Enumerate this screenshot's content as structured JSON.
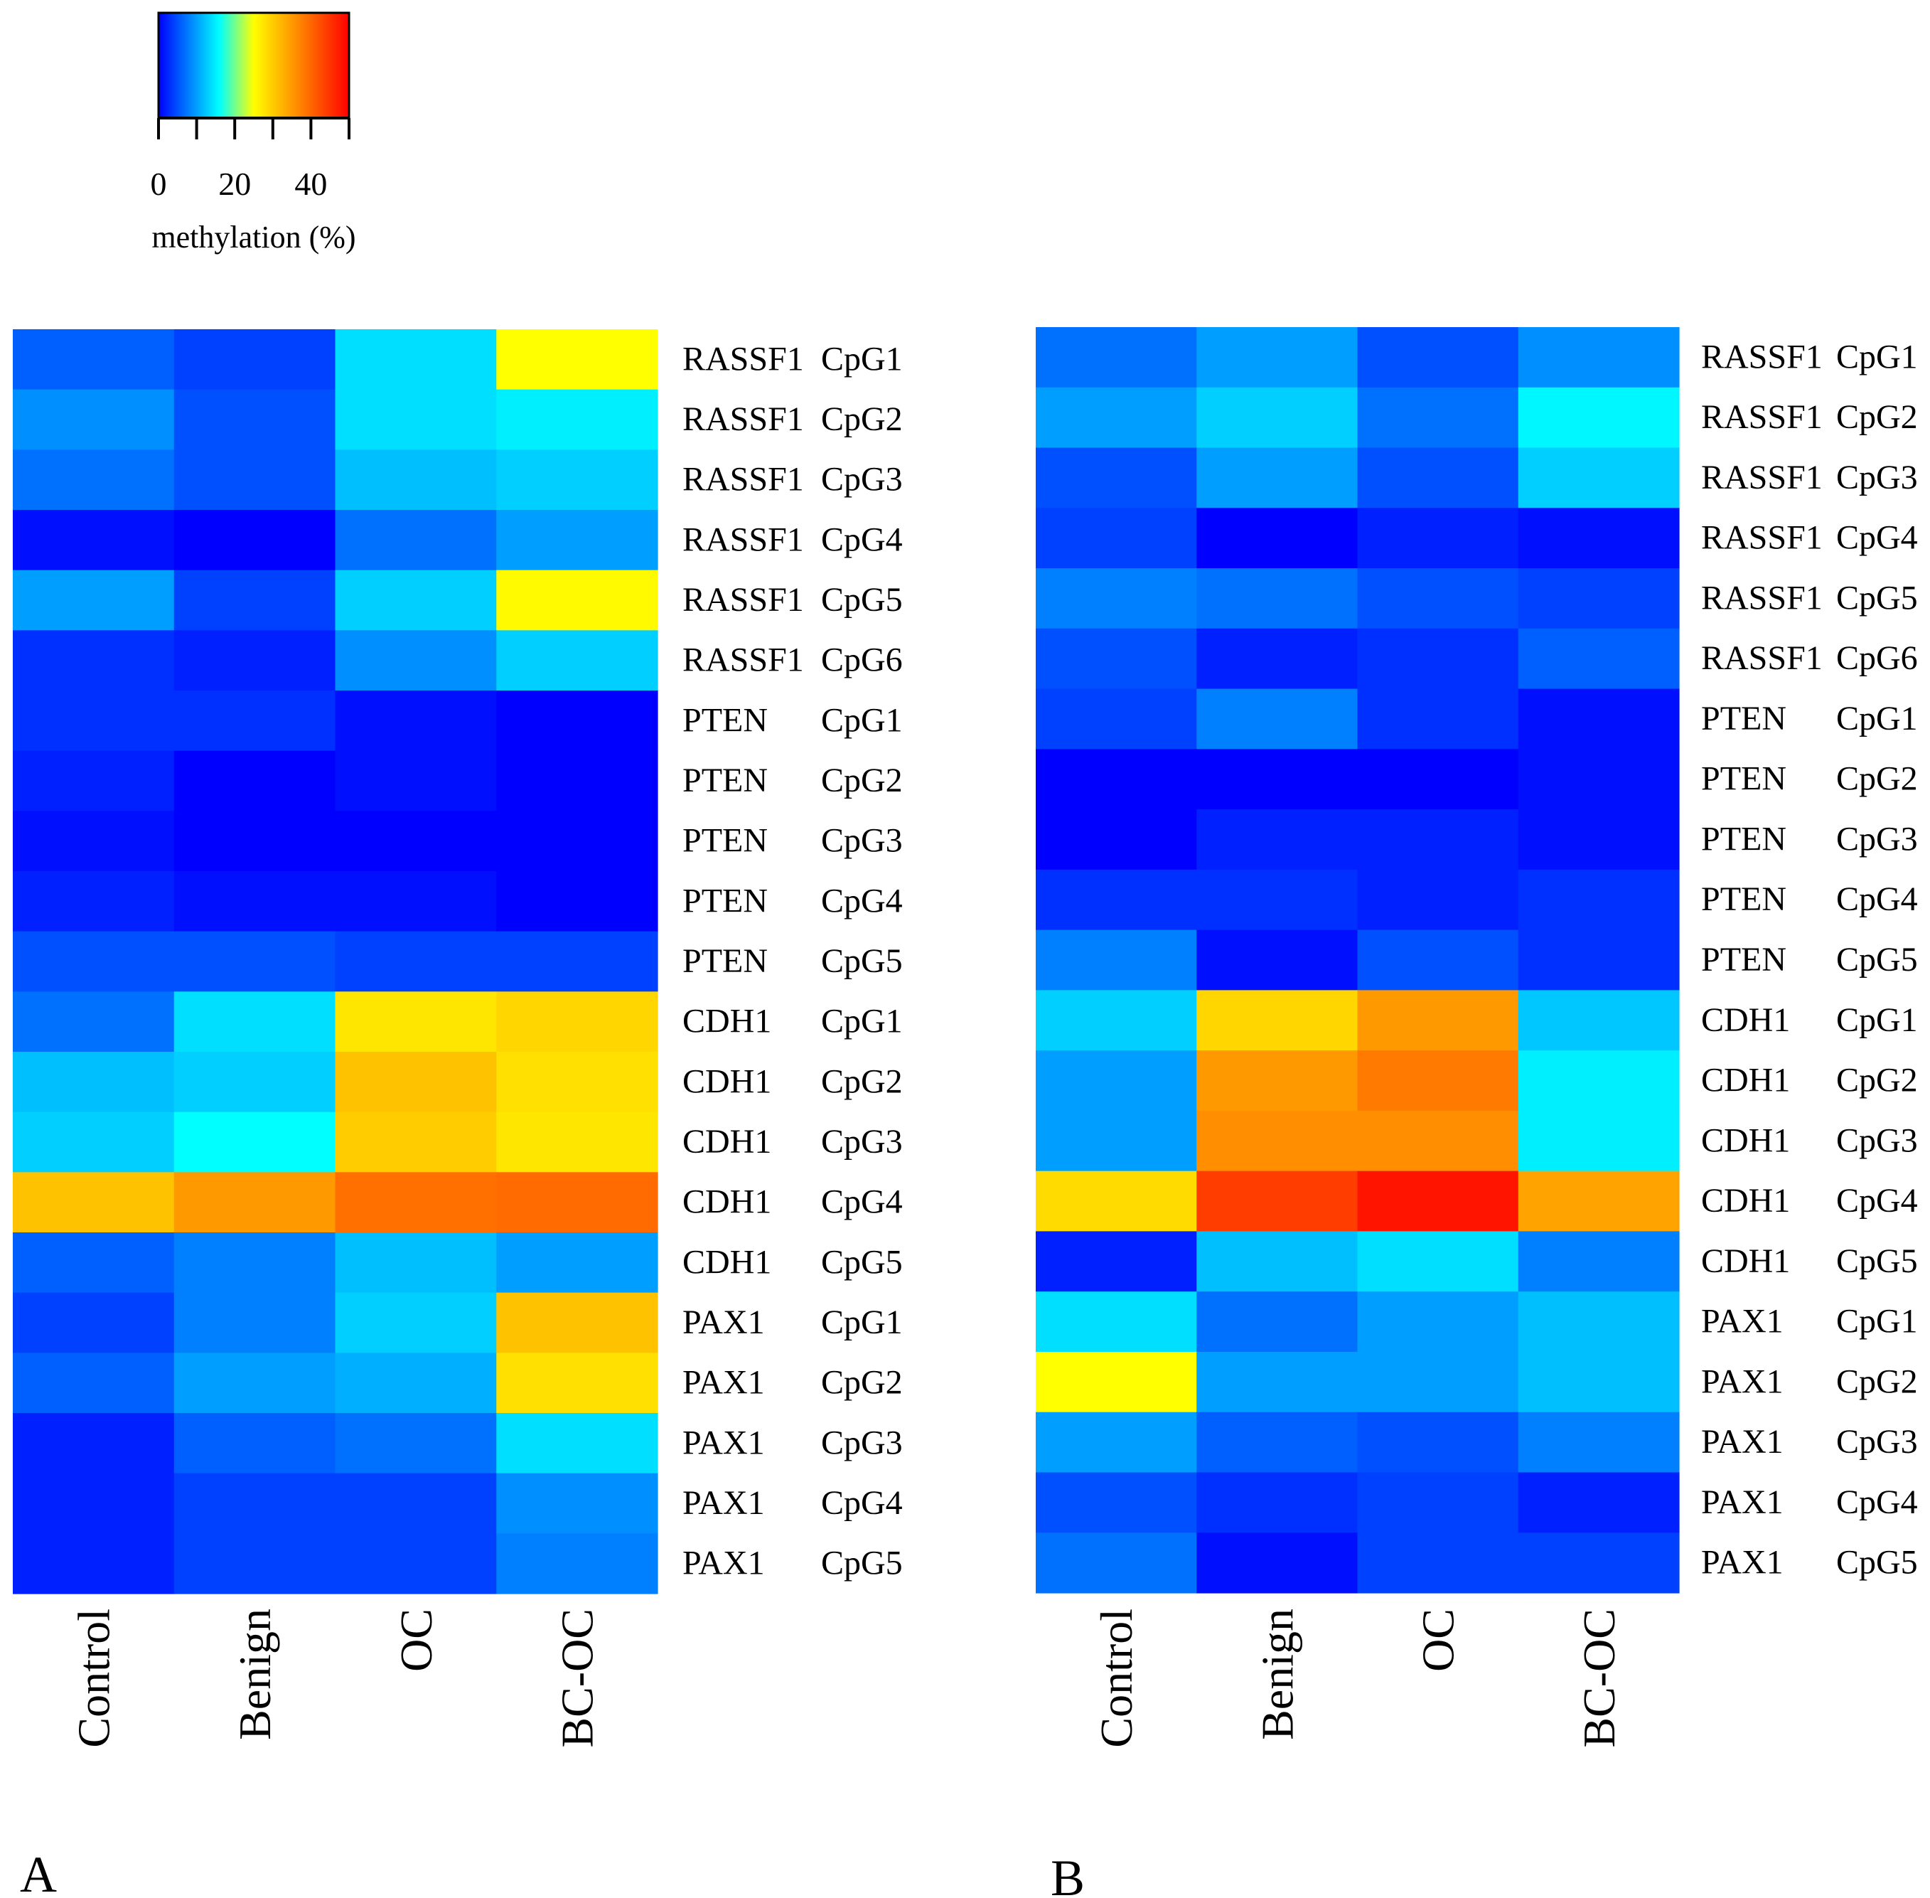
{
  "legend": {
    "title": "methylation (%)",
    "ticks": [
      0,
      20,
      40
    ],
    "tick_labels": [
      "0",
      "20",
      "40"
    ],
    "range": [
      0,
      50
    ],
    "color_stops": [
      {
        "value": 0,
        "color": "#0000ff"
      },
      {
        "value": 16,
        "color": "#00ffff"
      },
      {
        "value": 25,
        "color": "#ffff00"
      },
      {
        "value": 50,
        "color": "#ff0000"
      }
    ]
  },
  "chart_data": [
    {
      "type": "heatmap",
      "panel_label": "A",
      "columns": [
        "Control",
        "Benign",
        "OC",
        "BC-OC"
      ],
      "rows": [
        {
          "gene": "RASSF1",
          "site": "CpG1"
        },
        {
          "gene": "RASSF1",
          "site": "CpG2"
        },
        {
          "gene": "RASSF1",
          "site": "CpG3"
        },
        {
          "gene": "RASSF1",
          "site": "CpG4"
        },
        {
          "gene": "RASSF1",
          "site": "CpG5"
        },
        {
          "gene": "RASSF1",
          "site": "CpG6"
        },
        {
          "gene": "PTEN",
          "site": "CpG1"
        },
        {
          "gene": "PTEN",
          "site": "CpG2"
        },
        {
          "gene": "PTEN",
          "site": "CpG3"
        },
        {
          "gene": "PTEN",
          "site": "CpG4"
        },
        {
          "gene": "PTEN",
          "site": "CpG5"
        },
        {
          "gene": "CDH1",
          "site": "CpG1"
        },
        {
          "gene": "CDH1",
          "site": "CpG2"
        },
        {
          "gene": "CDH1",
          "site": "CpG3"
        },
        {
          "gene": "CDH1",
          "site": "CpG4"
        },
        {
          "gene": "CDH1",
          "site": "CpG5"
        },
        {
          "gene": "PAX1",
          "site": "CpG1"
        },
        {
          "gene": "PAX1",
          "site": "CpG2"
        },
        {
          "gene": "PAX1",
          "site": "CpG3"
        },
        {
          "gene": "PAX1",
          "site": "CpG4"
        },
        {
          "gene": "PAX1",
          "site": "CpG5"
        }
      ],
      "values": [
        [
          6,
          4,
          14,
          25
        ],
        [
          9,
          5,
          14,
          15
        ],
        [
          7,
          5,
          12,
          13
        ],
        [
          1,
          0,
          7,
          10
        ],
        [
          10,
          4,
          13,
          25.5
        ],
        [
          3,
          2,
          9,
          13
        ],
        [
          3,
          3,
          1,
          0
        ],
        [
          2,
          0,
          1,
          0
        ],
        [
          1,
          0,
          0,
          0
        ],
        [
          2,
          1,
          1,
          0
        ],
        [
          5,
          5,
          4,
          4
        ],
        [
          7,
          14,
          27.5,
          29
        ],
        [
          12,
          13,
          31,
          28
        ],
        [
          13,
          16,
          30,
          27.5
        ],
        [
          31,
          35,
          39,
          39.5
        ],
        [
          6,
          8,
          12,
          10
        ],
        [
          4,
          8,
          13,
          31
        ],
        [
          6,
          10,
          11,
          28
        ],
        [
          2,
          6,
          7,
          14
        ],
        [
          2,
          4,
          4,
          9
        ],
        [
          2,
          4,
          4,
          8
        ]
      ]
    },
    {
      "type": "heatmap",
      "panel_label": "B",
      "columns": [
        "Control",
        "Benign",
        "OC",
        "BC-OC"
      ],
      "rows": [
        {
          "gene": "RASSF1",
          "site": "CpG1"
        },
        {
          "gene": "RASSF1",
          "site": "CpG2"
        },
        {
          "gene": "RASSF1",
          "site": "CpG3"
        },
        {
          "gene": "RASSF1",
          "site": "CpG4"
        },
        {
          "gene": "RASSF1",
          "site": "CpG5"
        },
        {
          "gene": "RASSF1",
          "site": "CpG6"
        },
        {
          "gene": "PTEN",
          "site": "CpG1"
        },
        {
          "gene": "PTEN",
          "site": "CpG2"
        },
        {
          "gene": "PTEN",
          "site": "CpG3"
        },
        {
          "gene": "PTEN",
          "site": "CpG4"
        },
        {
          "gene": "PTEN",
          "site": "CpG5"
        },
        {
          "gene": "CDH1",
          "site": "CpG1"
        },
        {
          "gene": "CDH1",
          "site": "CpG2"
        },
        {
          "gene": "CDH1",
          "site": "CpG3"
        },
        {
          "gene": "CDH1",
          "site": "CpG4"
        },
        {
          "gene": "CDH1",
          "site": "CpG5"
        },
        {
          "gene": "PAX1",
          "site": "CpG1"
        },
        {
          "gene": "PAX1",
          "site": "CpG2"
        },
        {
          "gene": "PAX1",
          "site": "CpG3"
        },
        {
          "gene": "PAX1",
          "site": "CpG4"
        },
        {
          "gene": "PAX1",
          "site": "CpG5"
        }
      ],
      "values": [
        [
          7,
          10,
          5,
          9
        ],
        [
          10,
          13,
          7,
          15.5
        ],
        [
          5,
          10,
          5,
          13
        ],
        [
          4,
          0,
          2,
          1
        ],
        [
          8,
          7,
          5,
          4
        ],
        [
          5,
          2,
          3,
          6
        ],
        [
          4,
          8,
          3,
          1
        ],
        [
          0,
          0,
          0,
          1
        ],
        [
          0,
          2,
          2,
          1
        ],
        [
          3,
          3,
          2,
          3
        ],
        [
          8,
          1,
          5,
          3
        ],
        [
          13,
          29,
          35,
          12.5
        ],
        [
          10,
          35,
          38,
          15
        ],
        [
          10,
          36,
          36,
          15
        ],
        [
          28.5,
          44,
          48,
          34
        ],
        [
          2,
          12,
          14,
          8
        ],
        [
          14,
          7,
          10,
          12
        ],
        [
          25,
          10,
          10,
          12
        ],
        [
          10,
          6,
          5,
          8
        ],
        [
          5,
          3,
          4,
          2
        ],
        [
          7,
          1,
          4,
          4
        ]
      ]
    }
  ]
}
